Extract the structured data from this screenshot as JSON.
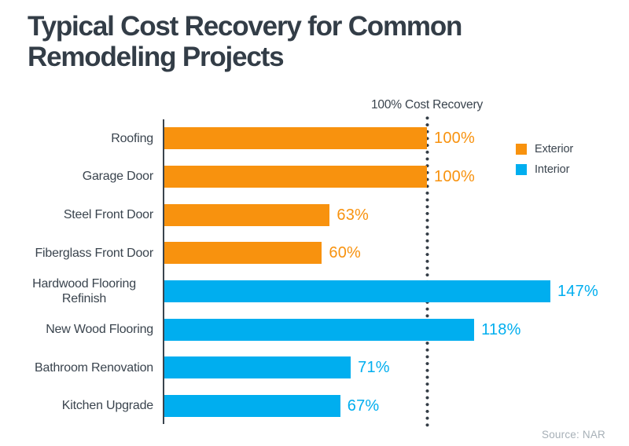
{
  "title": "Typical Cost Recovery for Common Remodeling Projects",
  "source": "Source: NAR",
  "colors": {
    "exterior_orange": "#F8920E",
    "interior_blue": "#00AEEF",
    "dark_text": "#333D47",
    "source_gray": "#A7B0B7"
  },
  "legend": [
    {
      "label": "Exterior",
      "color": "#F8920E"
    },
    {
      "label": "Interior",
      "color": "#00AEEF"
    }
  ],
  "chart_data": {
    "type": "bar",
    "orientation": "horizontal",
    "title": "Typical Cost Recovery for Common Remodeling Projects",
    "xlabel": "",
    "ylabel": "",
    "unit": "%",
    "xlim": [
      0,
      160
    ],
    "grid": false,
    "legend_position": "right",
    "categories": [
      "Roofing",
      "Garage Door",
      "Steel Front Door",
      "Fiberglass Front Door",
      "Hardwood Flooring Refinish",
      "New Wood Flooring",
      "Bathroom Renovation",
      "Kitchen Upgrade"
    ],
    "values": [
      100,
      100,
      63,
      60,
      147,
      118,
      71,
      67
    ],
    "value_labels": [
      "100%",
      "100%",
      "63%",
      "60%",
      "147%",
      "118%",
      "71%",
      "67%"
    ],
    "groups": [
      "Exterior",
      "Exterior",
      "Exterior",
      "Exterior",
      "Interior",
      "Interior",
      "Interior",
      "Interior"
    ],
    "colors": {
      "Exterior": "#F8920E",
      "Interior": "#00AEEF"
    },
    "reference_line": {
      "value": 100,
      "label": "100% Cost Recovery"
    }
  }
}
